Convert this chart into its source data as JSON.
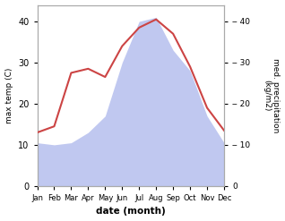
{
  "months": [
    "Jan",
    "Feb",
    "Mar",
    "Apr",
    "May",
    "Jun",
    "Jul",
    "Aug",
    "Sep",
    "Oct",
    "Nov",
    "Dec"
  ],
  "temperature": [
    13.0,
    14.5,
    27.5,
    28.5,
    26.5,
    34.0,
    38.5,
    40.5,
    37.0,
    29.0,
    19.0,
    13.5
  ],
  "precipitation": [
    10.5,
    10.0,
    10.5,
    13.0,
    17.0,
    30.0,
    40.0,
    41.0,
    33.0,
    28.0,
    17.0,
    10.5
  ],
  "temp_color": "#cc4444",
  "precip_color": "#c0c8f0",
  "left_ylabel": "max temp (C)",
  "right_ylabel": "med. precipitation\n(kg/m2)",
  "xlabel": "date (month)",
  "ylim_left": [
    0,
    44
  ],
  "ylim_right": [
    0,
    44
  ],
  "left_yticks": [
    0,
    10,
    20,
    30,
    40
  ],
  "right_yticks": [
    0,
    10,
    20,
    30,
    40
  ],
  "background_color": "#ffffff"
}
